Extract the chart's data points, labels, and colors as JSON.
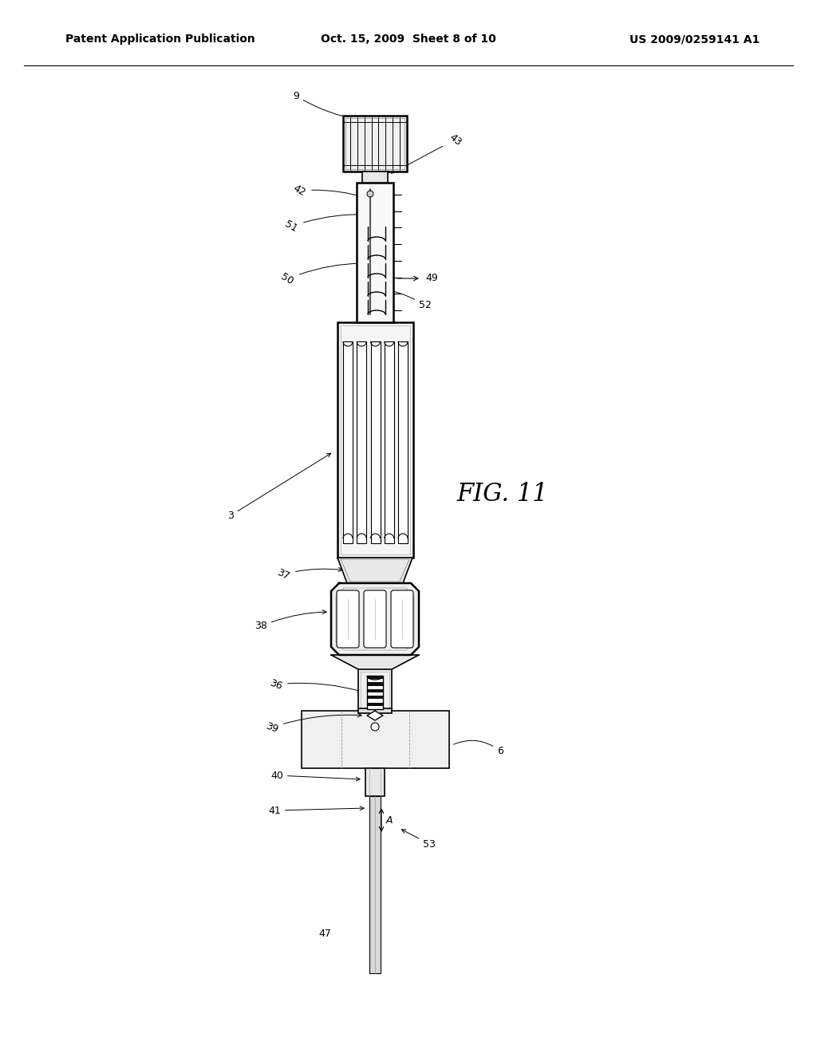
{
  "title_left": "Patent Application Publication",
  "title_mid": "Oct. 15, 2009  Sheet 8 of 10",
  "title_right": "US 2009/0259141 A1",
  "fig_label": "FIG. 11",
  "bg_color": "#ffffff",
  "line_color": "#000000"
}
